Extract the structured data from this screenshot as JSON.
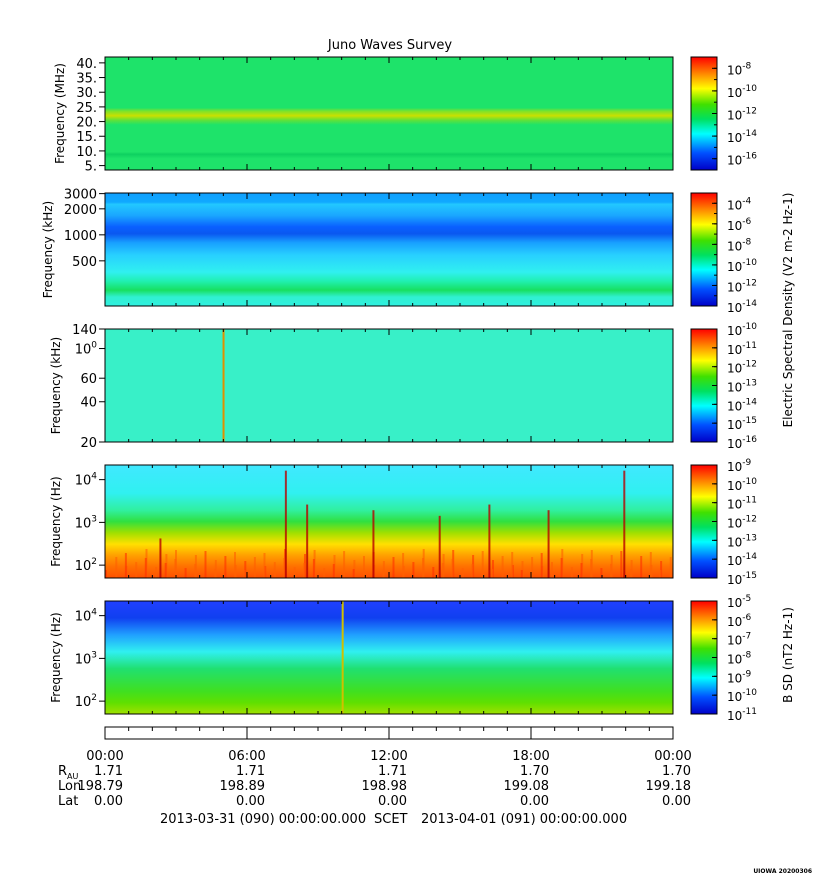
{
  "title": "Juno Waves Survey",
  "colors": {
    "colormap": [
      "#0000c8",
      "#0060ff",
      "#00ffff",
      "#00e060",
      "#20e000",
      "#ffff00",
      "#ff8000",
      "#ff0000"
    ],
    "background": "#ffffff"
  },
  "chart_data": [
    {
      "type": "heatmap",
      "ylabel": "Frequency (MHz)",
      "yticks": [
        "40.",
        "35.",
        "30.",
        "25.",
        "20.",
        "15.",
        "10.",
        "5."
      ],
      "ylim": [
        3.5,
        42
      ],
      "colorbar": {
        "ticks": [
          "10-8",
          "10-10",
          "10-12",
          "10-14",
          "10-16"
        ],
        "range_log": [
          -17,
          -7
        ]
      },
      "description_bands": [
        {
          "freq": 21,
          "level": "10-12"
        },
        {
          "freq": 8.5,
          "level": "10-13"
        }
      ]
    },
    {
      "type": "heatmap",
      "ylabel": "Frequency (kHz)",
      "yticks": [
        "3000",
        "2000",
        "1000",
        "500"
      ],
      "ylim": [
        150,
        3000
      ],
      "colorbar": {
        "ticks": [
          "10-4",
          "10-6",
          "10-8",
          "10-10",
          "10-12",
          "10-14"
        ],
        "range_log": [
          -14,
          -3
        ]
      },
      "colorbar_label": "Electric Spectral Density (V2 m-2 Hz-1)"
    },
    {
      "type": "heatmap",
      "ylabel": "Frequency (kHz)",
      "yticks": [
        "140",
        "100",
        "60",
        "40",
        "20"
      ],
      "ylim": [
        20,
        140
      ],
      "colorbar": {
        "ticks": [
          "10-10",
          "10-11",
          "10-12",
          "10-13",
          "10-14",
          "10-15",
          "10-16"
        ],
        "range_log": [
          -16,
          -10
        ]
      },
      "events": [
        {
          "time": "04:58",
          "type": "vertical-line"
        }
      ]
    },
    {
      "type": "heatmap",
      "ylabel": "Frequency (Hz)",
      "yticks": [
        "104",
        "103",
        "102"
      ],
      "ylim": [
        50,
        20000
      ],
      "colorbar": {
        "ticks": [
          "10-9",
          "10-10",
          "10-11",
          "10-12",
          "10-13",
          "10-14",
          "10-15"
        ],
        "range_log": [
          -15,
          -9
        ]
      }
    },
    {
      "type": "heatmap",
      "ylabel": "Frequency (Hz)",
      "yticks": [
        "104",
        "103",
        "102"
      ],
      "ylim": [
        50,
        20000
      ],
      "colorbar": {
        "ticks": [
          "10-5",
          "10-6",
          "10-7",
          "10-8",
          "10-9",
          "10-10",
          "10-11"
        ],
        "range_log": [
          -11,
          -5
        ]
      },
      "colorbar_label": "B SD (nT2 Hz-1)",
      "events": [
        {
          "time": "10:00",
          "type": "vertical-line"
        }
      ]
    }
  ],
  "x_axis": {
    "times": [
      "00:00",
      "06:00",
      "12:00",
      "18:00",
      "00:00"
    ]
  },
  "ephemeris": {
    "labels": [
      "RAU",
      "Lon",
      "Lat"
    ],
    "rows": [
      [
        "1.71",
        "1.71",
        "1.71",
        "1.70",
        "1.70"
      ],
      [
        "198.79",
        "198.89",
        "198.98",
        "199.08",
        "199.18"
      ],
      [
        "0.00",
        "0.00",
        "0.00",
        "0.00",
        "0.00"
      ]
    ]
  },
  "footer": {
    "start": "2013-03-31 (090) 00:00:00.000",
    "frame": "SCET",
    "end": "2013-04-01 (091) 00:00:00.000"
  },
  "stamp": "UIOWA 20200306"
}
